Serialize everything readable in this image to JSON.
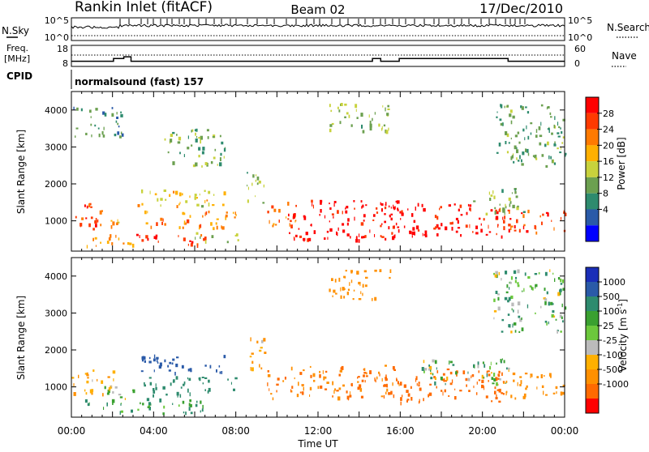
{
  "header": {
    "station": "Rankin Inlet (fitACF)",
    "beam": "Beam 02",
    "date": "17/Dec/2010"
  },
  "nsky_panel": {
    "left_label": "N.Sky",
    "right_label": "N.Search",
    "tick_top": "10^5",
    "tick_bottom": "10^0"
  },
  "freq_panel": {
    "left_label_1": "Freq.",
    "left_label_2": "[MHz]",
    "right_label": "Nave",
    "left_ticks": [
      "18",
      "8"
    ],
    "right_ticks": [
      "60",
      "0"
    ],
    "cpid_label": "CPID",
    "cpid_text": "normalsound (fast) 157"
  },
  "x_axis": {
    "tick_labels": [
      "00:00",
      "04:00",
      "08:00",
      "12:00",
      "16:00",
      "20:00",
      "00:00"
    ],
    "label": "Time UT"
  },
  "power_colorbar": {
    "title": "Power [dB]",
    "tick_labels": [
      "28",
      "24",
      "20",
      "16",
      "12",
      "8",
      "4"
    ],
    "colors": [
      "#ff0000",
      "#ff3a00",
      "#ff7a00",
      "#ffb000",
      "#c8d23c",
      "#6ca050",
      "#2e8b6e",
      "#2a5aa8",
      "#0000ff"
    ]
  },
  "velocity_colorbar": {
    "title": "Velocity [m s",
    "title_sup": "-1",
    "title_end": "]",
    "tick_labels": [
      "1000",
      "500",
      "100",
      "25",
      "-25",
      "-100",
      "-500",
      "-1000"
    ],
    "colors": [
      "#1a2eb8",
      "#2a5aa8",
      "#2e8b6e",
      "#3aa030",
      "#6cc83c",
      "#bbbbbb",
      "#ffb000",
      "#ff9000",
      "#ff6a00",
      "#ff0000"
    ]
  },
  "chart_data": {
    "type": "heatmap",
    "title": "Rankin Inlet (fitACF)",
    "xlabel": "Time UT",
    "ylabel": "Slant Range [km]",
    "xlim": [
      0,
      24
    ],
    "ylim": [
      180,
      4500
    ],
    "y_ticks": [
      1000,
      2000,
      3000,
      4000
    ],
    "x_ticks_hours": [
      0,
      4,
      8,
      12,
      16,
      20,
      24
    ],
    "frequency_mhz": [
      {
        "t": 0.0,
        "f": 10.0
      },
      {
        "t": 2.05,
        "f": 10.0
      },
      {
        "t": 2.05,
        "f": 11.5
      },
      {
        "t": 2.55,
        "f": 11.5
      },
      {
        "t": 2.55,
        "f": 12.5
      },
      {
        "t": 2.9,
        "f": 12.5
      },
      {
        "t": 2.9,
        "f": 10.0
      },
      {
        "t": 14.65,
        "f": 10.0
      },
      {
        "t": 14.65,
        "f": 11.5
      },
      {
        "t": 15.05,
        "f": 11.5
      },
      {
        "t": 15.05,
        "f": 10.0
      },
      {
        "t": 15.95,
        "f": 10.0
      },
      {
        "t": 15.95,
        "f": 11.5
      },
      {
        "t": 21.25,
        "f": 11.5
      },
      {
        "t": 21.25,
        "f": 10.0
      },
      {
        "t": 24.0,
        "f": 10.0
      }
    ],
    "panels": [
      {
        "name": "Power [dB]",
        "zlim": [
          0,
          32
        ],
        "regions": [
          {
            "t0": 0.0,
            "t1": 1.7,
            "r0": 800,
            "r1": 1500,
            "v": 26
          },
          {
            "t0": 1.7,
            "t1": 2.6,
            "r0": 700,
            "r1": 1100,
            "v": 20
          },
          {
            "t0": 0.5,
            "t1": 3.0,
            "r0": 300,
            "r1": 650,
            "v": 22
          },
          {
            "t0": 3.0,
            "t1": 6.5,
            "r0": 300,
            "r1": 650,
            "v": 28
          },
          {
            "t0": 3.2,
            "t1": 7.5,
            "r0": 1400,
            "r1": 1900,
            "v": 18
          },
          {
            "t0": 3.5,
            "t1": 8.0,
            "r0": 800,
            "r1": 1300,
            "v": 22
          },
          {
            "t0": 6.0,
            "t1": 8.2,
            "r0": 450,
            "r1": 700,
            "v": 14
          },
          {
            "t0": 8.5,
            "t1": 9.4,
            "r0": 1500,
            "r1": 2400,
            "v": 14
          },
          {
            "t0": 9.5,
            "t1": 11.0,
            "r0": 800,
            "r1": 1600,
            "v": 24
          },
          {
            "t0": 10.5,
            "t1": 16.0,
            "r0": 500,
            "r1": 1600,
            "v": 30
          },
          {
            "t0": 15.0,
            "t1": 21.0,
            "r0": 600,
            "r1": 1500,
            "v": 30
          },
          {
            "t0": 19.5,
            "t1": 22.0,
            "r0": 1200,
            "r1": 1900,
            "v": 14
          },
          {
            "t0": 21.0,
            "t1": 24.0,
            "r0": 700,
            "r1": 1400,
            "v": 26
          },
          {
            "t0": 0.0,
            "t1": 2.5,
            "r0": 3300,
            "r1": 4100,
            "v": 10
          },
          {
            "t0": 4.5,
            "t1": 7.5,
            "r0": 2500,
            "r1": 3500,
            "v": 12
          },
          {
            "t0": 12.5,
            "t1": 15.5,
            "r0": 3400,
            "r1": 4200,
            "v": 14
          },
          {
            "t0": 20.5,
            "t1": 24.0,
            "r0": 2500,
            "r1": 4200,
            "v": 12
          }
        ]
      },
      {
        "name": "Velocity [m s-1]",
        "zlim": [
          -1000,
          1000
        ],
        "regions": [
          {
            "t0": 0.0,
            "t1": 2.2,
            "r0": 800,
            "r1": 1500,
            "v": -100
          },
          {
            "t0": 1.5,
            "t1": 3.0,
            "r0": 700,
            "r1": 1100,
            "v": 0
          },
          {
            "t0": 0.5,
            "t1": 6.5,
            "r0": 300,
            "r1": 700,
            "v": 100
          },
          {
            "t0": 3.2,
            "t1": 7.5,
            "r0": 1400,
            "r1": 1900,
            "v": 600
          },
          {
            "t0": 3.5,
            "t1": 8.0,
            "r0": 800,
            "r1": 1300,
            "v": 200
          },
          {
            "t0": 8.5,
            "t1": 9.4,
            "r0": 1500,
            "r1": 2400,
            "v": -100
          },
          {
            "t0": 9.5,
            "t1": 16.0,
            "r0": 700,
            "r1": 1600,
            "v": -300
          },
          {
            "t0": 15.0,
            "t1": 21.0,
            "r0": 600,
            "r1": 1500,
            "v": -400
          },
          {
            "t0": 17.0,
            "t1": 21.5,
            "r0": 1100,
            "r1": 1800,
            "v": 50
          },
          {
            "t0": 21.0,
            "t1": 24.0,
            "r0": 700,
            "r1": 1400,
            "v": -200
          },
          {
            "t0": 12.5,
            "t1": 15.5,
            "r0": 3400,
            "r1": 4200,
            "v": -200
          },
          {
            "t0": 20.5,
            "t1": 24.0,
            "r0": 2500,
            "r1": 4200,
            "v": 60
          }
        ]
      }
    ]
  }
}
